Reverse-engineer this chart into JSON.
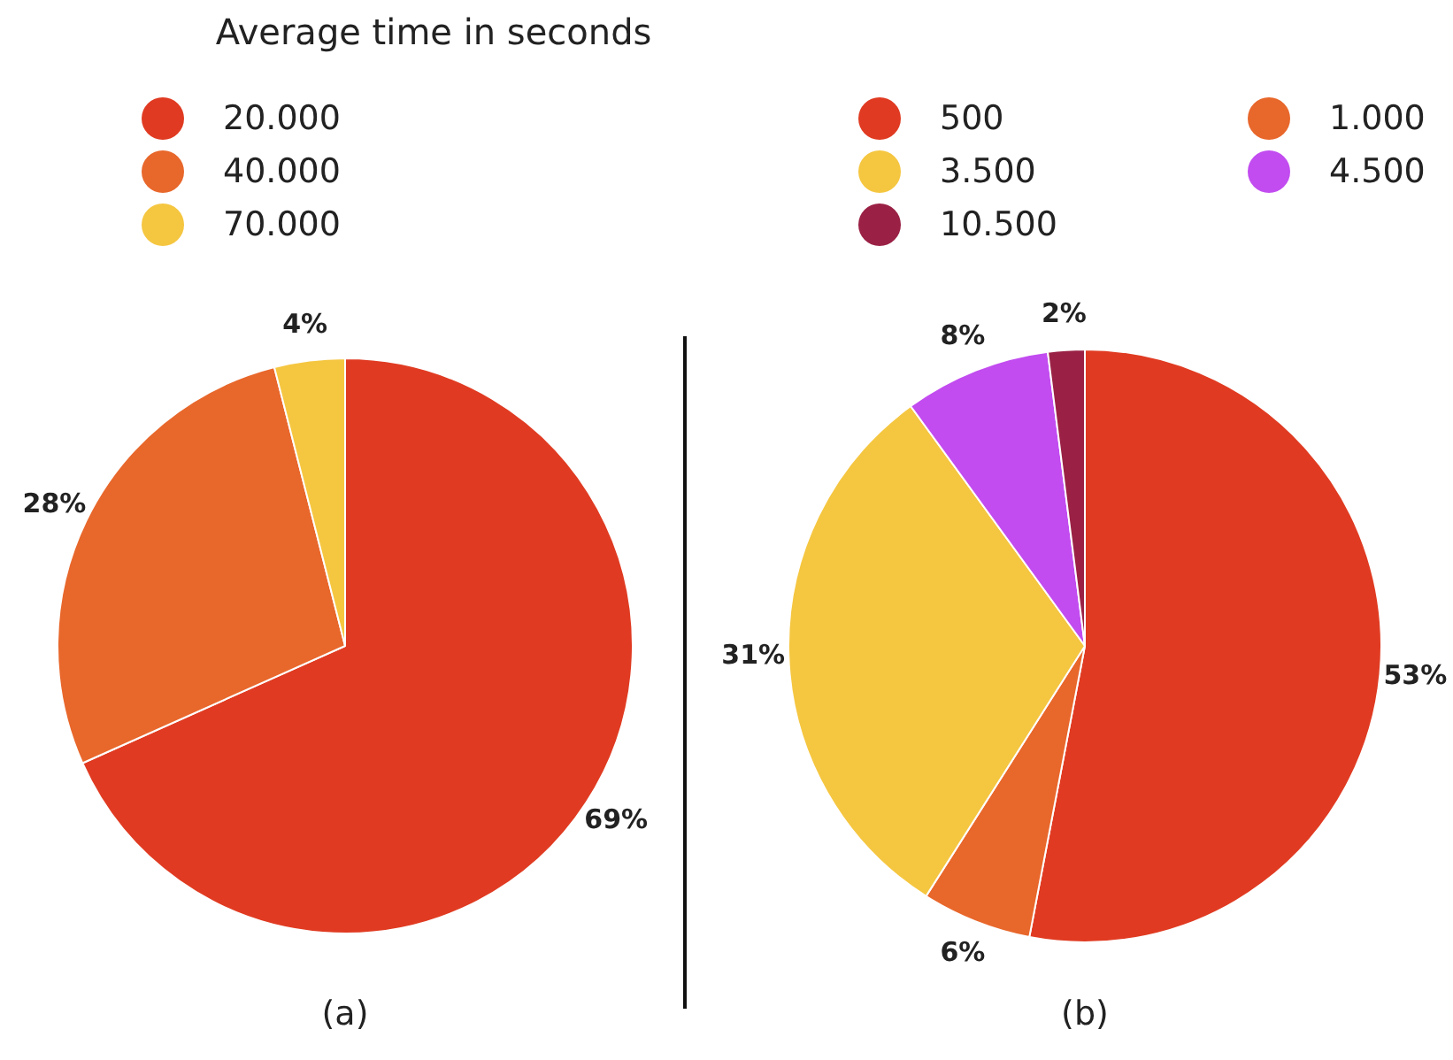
{
  "chart_data": [
    {
      "type": "pie",
      "title": "Average time in seconds",
      "categories": [
        "20.000",
        "40.000",
        "70.000"
      ],
      "values": [
        69,
        28,
        4
      ],
      "colors": [
        "#e03b22",
        "#e8672b",
        "#f5c640"
      ],
      "value_labels": [
        "69%",
        "28%",
        "4%"
      ],
      "legend": "top",
      "annotations": [
        "(a)"
      ]
    },
    {
      "type": "pie",
      "categories": [
        "500",
        "1.000",
        "3.500",
        "4.500",
        "10.500"
      ],
      "values": [
        53,
        6,
        31,
        8,
        2
      ],
      "colors": [
        "#e03b22",
        "#e8672b",
        "#f5c640",
        "#c24cf0",
        "#9a2145"
      ],
      "value_labels": [
        "53%",
        "6%",
        "31%",
        "8%",
        "2%"
      ],
      "legend": "top",
      "annotations": [
        "(b)"
      ]
    }
  ]
}
